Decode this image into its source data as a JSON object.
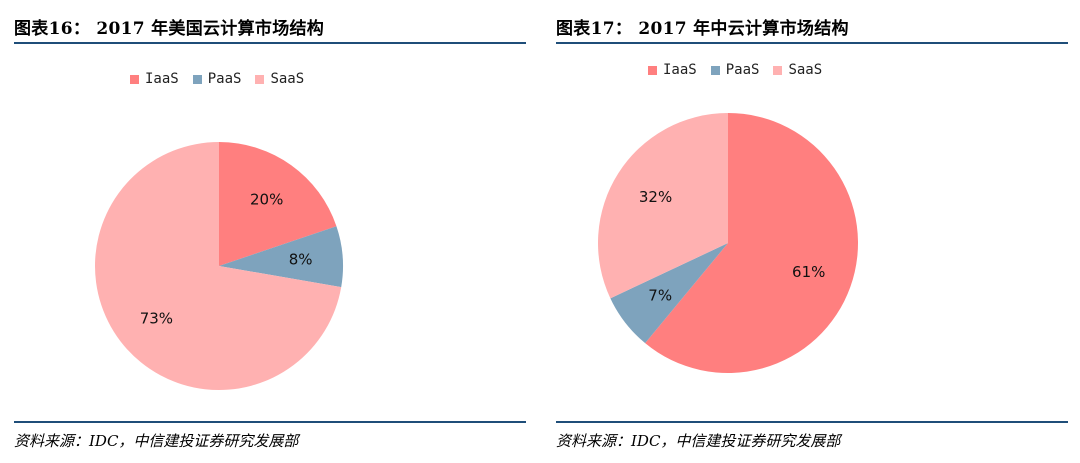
{
  "colors": {
    "iaas": "#ff7f7f",
    "paas": "#7ea3bd",
    "saas": "#ffb1b1",
    "rule": "#1f4e79"
  },
  "chart_data": [
    {
      "type": "pie",
      "title": "图表16： 2017 年美国云计算市场结构",
      "legend_placement": "top",
      "categories": [
        "IaaS",
        "PaaS",
        "SaaS"
      ],
      "values": [
        20,
        8,
        73
      ],
      "labels": [
        "20%",
        "8%",
        "73%"
      ],
      "source": "资料来源：IDC，中信建投证券研究发展部"
    },
    {
      "type": "pie",
      "title": "图表17： 2017 年中云计算市场结构",
      "legend_placement": "top",
      "categories": [
        "IaaS",
        "PaaS",
        "SaaS"
      ],
      "values": [
        61,
        7,
        32
      ],
      "labels": [
        "61%",
        "7%",
        "32%"
      ],
      "source": "资料来源：IDC，中信建投证券研究发展部"
    }
  ]
}
